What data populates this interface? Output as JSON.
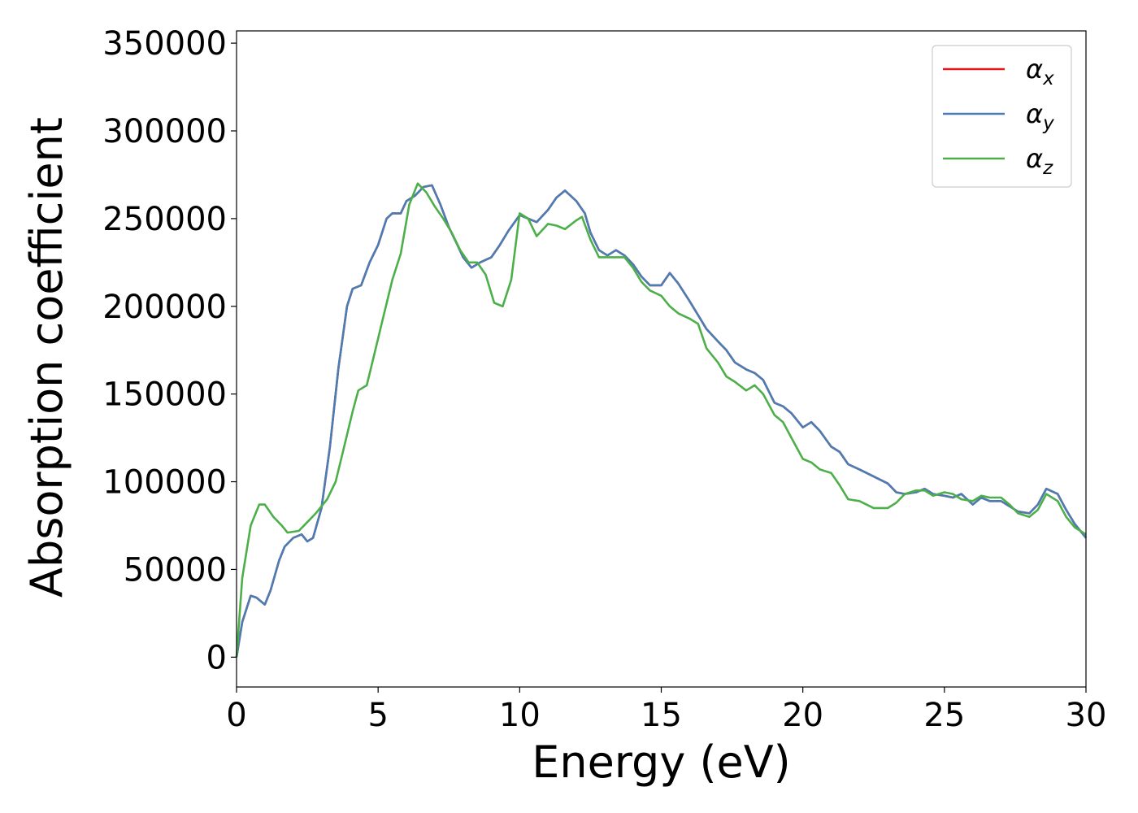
{
  "chart_data": {
    "type": "line",
    "title": "",
    "xlabel": "Energy (eV)",
    "ylabel": "Absorption coefficient",
    "xlim": [
      0,
      30
    ],
    "ylim": [
      -17000,
      357000
    ],
    "xticks": [
      0,
      5,
      10,
      15,
      20,
      25,
      30
    ],
    "yticks": [
      0,
      50000,
      100000,
      150000,
      200000,
      250000,
      300000,
      350000
    ],
    "grid": false,
    "legend_position": "top-right",
    "series": [
      {
        "name": "x",
        "legend_symbol": "α",
        "legend_subscript": "x",
        "color": "#e41a1c",
        "points": [
          [
            0,
            0
          ],
          [
            0.2,
            20000
          ],
          [
            0.5,
            35000
          ],
          [
            0.7,
            34000
          ],
          [
            1.0,
            30000
          ],
          [
            1.2,
            38000
          ],
          [
            1.5,
            55000
          ],
          [
            1.7,
            63000
          ],
          [
            2.0,
            68000
          ],
          [
            2.3,
            70000
          ],
          [
            2.5,
            66000
          ],
          [
            2.7,
            68000
          ],
          [
            3.0,
            85000
          ],
          [
            3.3,
            120000
          ],
          [
            3.6,
            165000
          ],
          [
            3.9,
            200000
          ],
          [
            4.1,
            210000
          ],
          [
            4.4,
            212000
          ],
          [
            4.7,
            225000
          ],
          [
            5.0,
            235000
          ],
          [
            5.3,
            250000
          ],
          [
            5.5,
            253000
          ],
          [
            5.8,
            253000
          ],
          [
            6.0,
            260000
          ],
          [
            6.3,
            263000
          ],
          [
            6.6,
            268000
          ],
          [
            6.9,
            269000
          ],
          [
            7.2,
            258000
          ],
          [
            7.5,
            245000
          ],
          [
            7.8,
            235000
          ],
          [
            8.0,
            228000
          ],
          [
            8.3,
            222000
          ],
          [
            8.6,
            225000
          ],
          [
            9.0,
            228000
          ],
          [
            9.3,
            235000
          ],
          [
            9.6,
            243000
          ],
          [
            10.0,
            252000
          ],
          [
            10.3,
            250000
          ],
          [
            10.6,
            248000
          ],
          [
            11.0,
            255000
          ],
          [
            11.3,
            262000
          ],
          [
            11.6,
            266000
          ],
          [
            12.0,
            260000
          ],
          [
            12.3,
            253000
          ],
          [
            12.5,
            242000
          ],
          [
            12.8,
            232000
          ],
          [
            13.1,
            229000
          ],
          [
            13.4,
            232000
          ],
          [
            13.7,
            229000
          ],
          [
            14.0,
            224000
          ],
          [
            14.3,
            217000
          ],
          [
            14.6,
            212000
          ],
          [
            15.0,
            212000
          ],
          [
            15.3,
            219000
          ],
          [
            15.6,
            213000
          ],
          [
            16.0,
            203000
          ],
          [
            16.3,
            195000
          ],
          [
            16.6,
            187000
          ],
          [
            17.0,
            180000
          ],
          [
            17.3,
            175000
          ],
          [
            17.6,
            168000
          ],
          [
            18.0,
            164000
          ],
          [
            18.3,
            162000
          ],
          [
            18.6,
            158000
          ],
          [
            19.0,
            145000
          ],
          [
            19.3,
            143000
          ],
          [
            19.6,
            139000
          ],
          [
            20.0,
            131000
          ],
          [
            20.3,
            134000
          ],
          [
            20.6,
            129000
          ],
          [
            21.0,
            120000
          ],
          [
            21.3,
            117000
          ],
          [
            21.6,
            110000
          ],
          [
            22.0,
            107000
          ],
          [
            22.5,
            103000
          ],
          [
            23.0,
            99000
          ],
          [
            23.3,
            94000
          ],
          [
            23.6,
            93000
          ],
          [
            24.0,
            94000
          ],
          [
            24.3,
            96000
          ],
          [
            24.6,
            93000
          ],
          [
            25.0,
            92000
          ],
          [
            25.3,
            91000
          ],
          [
            25.6,
            93000
          ],
          [
            26.0,
            87000
          ],
          [
            26.3,
            91000
          ],
          [
            26.6,
            89000
          ],
          [
            27.0,
            89000
          ],
          [
            27.3,
            86000
          ],
          [
            27.6,
            83000
          ],
          [
            28.0,
            82000
          ],
          [
            28.3,
            87000
          ],
          [
            28.6,
            96000
          ],
          [
            29.0,
            93000
          ],
          [
            29.3,
            84000
          ],
          [
            29.6,
            76000
          ],
          [
            30.0,
            68000
          ]
        ]
      },
      {
        "name": "y",
        "legend_symbol": "α",
        "legend_subscript": "y",
        "color": "#4a7db4",
        "points": [
          [
            0,
            0
          ],
          [
            0.2,
            20000
          ],
          [
            0.5,
            35000
          ],
          [
            0.7,
            34000
          ],
          [
            1.0,
            30000
          ],
          [
            1.2,
            38000
          ],
          [
            1.5,
            55000
          ],
          [
            1.7,
            63000
          ],
          [
            2.0,
            68000
          ],
          [
            2.3,
            70000
          ],
          [
            2.5,
            66000
          ],
          [
            2.7,
            68000
          ],
          [
            3.0,
            85000
          ],
          [
            3.3,
            120000
          ],
          [
            3.6,
            165000
          ],
          [
            3.9,
            200000
          ],
          [
            4.1,
            210000
          ],
          [
            4.4,
            212000
          ],
          [
            4.7,
            225000
          ],
          [
            5.0,
            235000
          ],
          [
            5.3,
            250000
          ],
          [
            5.5,
            253000
          ],
          [
            5.8,
            253000
          ],
          [
            6.0,
            260000
          ],
          [
            6.3,
            263000
          ],
          [
            6.6,
            268000
          ],
          [
            6.9,
            269000
          ],
          [
            7.2,
            258000
          ],
          [
            7.5,
            245000
          ],
          [
            7.8,
            235000
          ],
          [
            8.0,
            228000
          ],
          [
            8.3,
            222000
          ],
          [
            8.6,
            225000
          ],
          [
            9.0,
            228000
          ],
          [
            9.3,
            235000
          ],
          [
            9.6,
            243000
          ],
          [
            10.0,
            252000
          ],
          [
            10.3,
            250000
          ],
          [
            10.6,
            248000
          ],
          [
            11.0,
            255000
          ],
          [
            11.3,
            262000
          ],
          [
            11.6,
            266000
          ],
          [
            12.0,
            260000
          ],
          [
            12.3,
            253000
          ],
          [
            12.5,
            242000
          ],
          [
            12.8,
            232000
          ],
          [
            13.1,
            229000
          ],
          [
            13.4,
            232000
          ],
          [
            13.7,
            229000
          ],
          [
            14.0,
            224000
          ],
          [
            14.3,
            217000
          ],
          [
            14.6,
            212000
          ],
          [
            15.0,
            212000
          ],
          [
            15.3,
            219000
          ],
          [
            15.6,
            213000
          ],
          [
            16.0,
            203000
          ],
          [
            16.3,
            195000
          ],
          [
            16.6,
            187000
          ],
          [
            17.0,
            180000
          ],
          [
            17.3,
            175000
          ],
          [
            17.6,
            168000
          ],
          [
            18.0,
            164000
          ],
          [
            18.3,
            162000
          ],
          [
            18.6,
            158000
          ],
          [
            19.0,
            145000
          ],
          [
            19.3,
            143000
          ],
          [
            19.6,
            139000
          ],
          [
            20.0,
            131000
          ],
          [
            20.3,
            134000
          ],
          [
            20.6,
            129000
          ],
          [
            21.0,
            120000
          ],
          [
            21.3,
            117000
          ],
          [
            21.6,
            110000
          ],
          [
            22.0,
            107000
          ],
          [
            22.5,
            103000
          ],
          [
            23.0,
            99000
          ],
          [
            23.3,
            94000
          ],
          [
            23.6,
            93000
          ],
          [
            24.0,
            94000
          ],
          [
            24.3,
            96000
          ],
          [
            24.6,
            93000
          ],
          [
            25.0,
            92000
          ],
          [
            25.3,
            91000
          ],
          [
            25.6,
            93000
          ],
          [
            26.0,
            87000
          ],
          [
            26.3,
            91000
          ],
          [
            26.6,
            89000
          ],
          [
            27.0,
            89000
          ],
          [
            27.3,
            86000
          ],
          [
            27.6,
            83000
          ],
          [
            28.0,
            82000
          ],
          [
            28.3,
            87000
          ],
          [
            28.6,
            96000
          ],
          [
            29.0,
            93000
          ],
          [
            29.3,
            84000
          ],
          [
            29.6,
            76000
          ],
          [
            30.0,
            68000
          ]
        ]
      },
      {
        "name": "z",
        "legend_symbol": "α",
        "legend_subscript": "z",
        "color": "#4daf4a",
        "points": [
          [
            0,
            0
          ],
          [
            0.2,
            45000
          ],
          [
            0.5,
            75000
          ],
          [
            0.8,
            87000
          ],
          [
            1.0,
            87000
          ],
          [
            1.3,
            80000
          ],
          [
            1.6,
            75000
          ],
          [
            1.8,
            71000
          ],
          [
            2.2,
            72000
          ],
          [
            2.5,
            77000
          ],
          [
            2.8,
            82000
          ],
          [
            3.2,
            90000
          ],
          [
            3.5,
            100000
          ],
          [
            3.8,
            120000
          ],
          [
            4.1,
            140000
          ],
          [
            4.3,
            152000
          ],
          [
            4.6,
            155000
          ],
          [
            4.9,
            175000
          ],
          [
            5.2,
            195000
          ],
          [
            5.5,
            215000
          ],
          [
            5.8,
            230000
          ],
          [
            6.1,
            258000
          ],
          [
            6.4,
            270000
          ],
          [
            6.7,
            265000
          ],
          [
            7.0,
            257000
          ],
          [
            7.3,
            250000
          ],
          [
            7.6,
            242000
          ],
          [
            7.9,
            232000
          ],
          [
            8.2,
            225000
          ],
          [
            8.5,
            225000
          ],
          [
            8.8,
            218000
          ],
          [
            9.1,
            202000
          ],
          [
            9.4,
            200000
          ],
          [
            9.7,
            215000
          ],
          [
            10.0,
            253000
          ],
          [
            10.3,
            250000
          ],
          [
            10.6,
            240000
          ],
          [
            11.0,
            247000
          ],
          [
            11.3,
            246000
          ],
          [
            11.6,
            244000
          ],
          [
            12.0,
            249000
          ],
          [
            12.2,
            251000
          ],
          [
            12.5,
            238000
          ],
          [
            12.8,
            228000
          ],
          [
            13.1,
            228000
          ],
          [
            13.4,
            228000
          ],
          [
            13.7,
            228000
          ],
          [
            14.0,
            222000
          ],
          [
            14.3,
            214000
          ],
          [
            14.6,
            209000
          ],
          [
            15.0,
            206000
          ],
          [
            15.3,
            200000
          ],
          [
            15.6,
            196000
          ],
          [
            16.0,
            193000
          ],
          [
            16.3,
            190000
          ],
          [
            16.6,
            176000
          ],
          [
            17.0,
            168000
          ],
          [
            17.3,
            160000
          ],
          [
            17.6,
            157000
          ],
          [
            18.0,
            152000
          ],
          [
            18.3,
            155000
          ],
          [
            18.6,
            150000
          ],
          [
            19.0,
            138000
          ],
          [
            19.3,
            134000
          ],
          [
            19.6,
            125000
          ],
          [
            20.0,
            113000
          ],
          [
            20.3,
            111000
          ],
          [
            20.6,
            107000
          ],
          [
            21.0,
            105000
          ],
          [
            21.3,
            98000
          ],
          [
            21.6,
            90000
          ],
          [
            22.0,
            89000
          ],
          [
            22.5,
            85000
          ],
          [
            23.0,
            85000
          ],
          [
            23.3,
            88000
          ],
          [
            23.6,
            93000
          ],
          [
            24.0,
            95000
          ],
          [
            24.3,
            95000
          ],
          [
            24.6,
            92000
          ],
          [
            25.0,
            94000
          ],
          [
            25.3,
            93000
          ],
          [
            25.6,
            90000
          ],
          [
            26.0,
            89000
          ],
          [
            26.3,
            92000
          ],
          [
            26.6,
            91000
          ],
          [
            27.0,
            91000
          ],
          [
            27.3,
            87000
          ],
          [
            27.6,
            82000
          ],
          [
            28.0,
            80000
          ],
          [
            28.3,
            84000
          ],
          [
            28.6,
            93000
          ],
          [
            29.0,
            89000
          ],
          [
            29.3,
            80000
          ],
          [
            29.6,
            74000
          ],
          [
            30.0,
            70000
          ]
        ]
      }
    ]
  }
}
